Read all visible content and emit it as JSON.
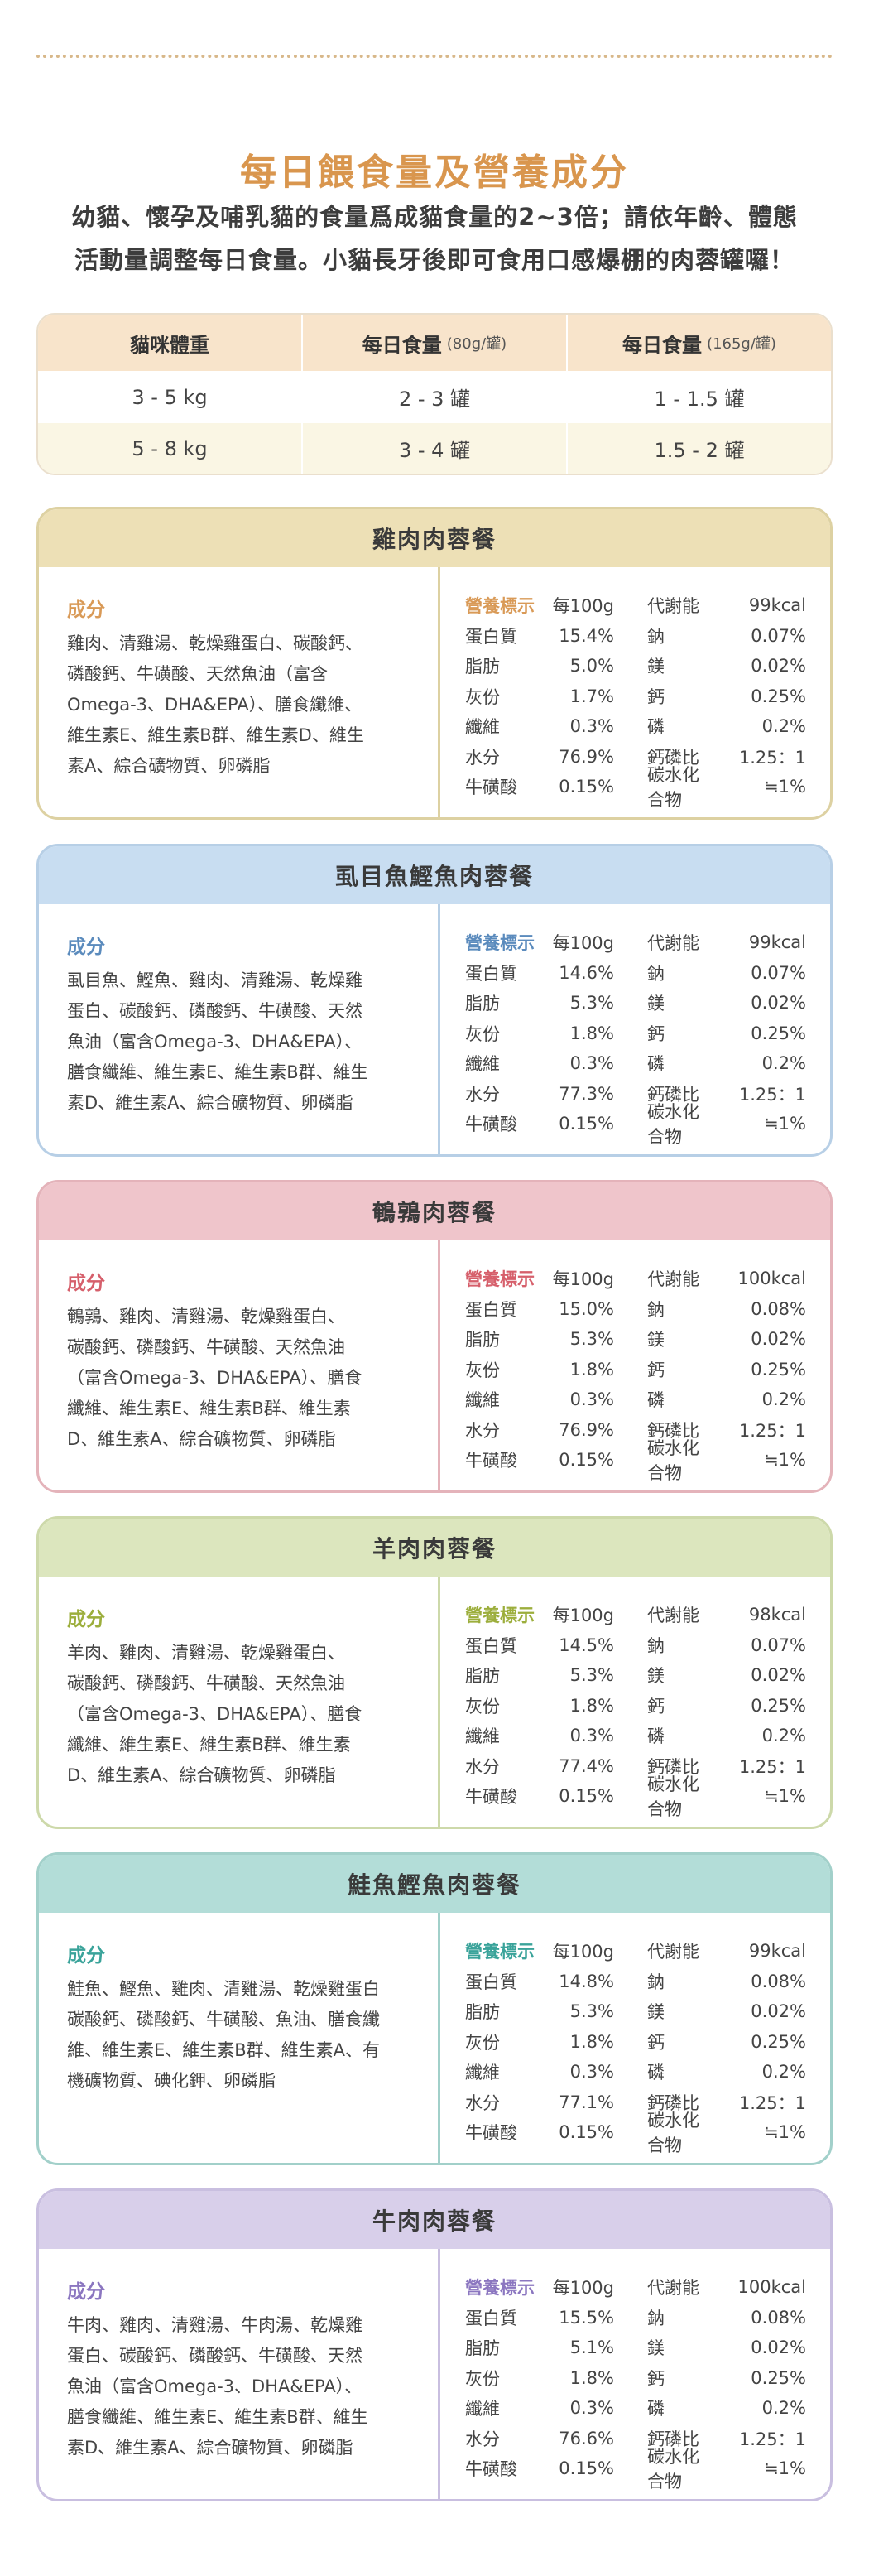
{
  "title": "每日餵食量及營養成分",
  "intro_lines": [
    "幼貓、懷孕及哺乳貓的食量爲成貓食量的2~3倍；請依年齡、體態",
    "活動量調整每日食量。小貓長牙後即可食用口感爆棚的肉蓉罐囉！"
  ],
  "feeding_table": {
    "headers": [
      {
        "main": "貓咪體重",
        "sub": ""
      },
      {
        "main": "每日食量",
        "sub": "(80g/罐)"
      },
      {
        "main": "每日食量",
        "sub": "(165g/罐)"
      }
    ],
    "rows": [
      [
        "3 - 5 kg",
        "2 - 3 罐",
        "1 - 1.5 罐"
      ],
      [
        "5 - 8 kg",
        "3 - 4 罐",
        "1.5 - 2 罐"
      ]
    ]
  },
  "ingredients_label": "成分",
  "nutrition_header_label": "營養標示",
  "per_100g": "每100g",
  "products": [
    {
      "name": "雞肉肉蓉餐",
      "colors": {
        "head": "#ede0b6",
        "border": "#ddd1a2",
        "accent": "#d99a57"
      },
      "ingredients": [
        "雞肉、清雞湯、乾燥雞蛋白、碳酸鈣、",
        "磷酸鈣、牛磺酸、天然魚油（富含",
        "Omega-3、DHA&EPA）、膳食纖維、",
        "維生素E、維生素B群、維生素D、維生",
        "素A、綜合礦物質、卵磷脂"
      ],
      "nutrition": [
        [
          "蛋白質",
          "15.4%",
          "鈉",
          "0.07%"
        ],
        [
          "脂肪",
          "5.0%",
          "鎂",
          "0.02%"
        ],
        [
          "灰份",
          "1.7%",
          "鈣",
          "0.25%"
        ],
        [
          "纖維",
          "0.3%",
          "磷",
          "0.2%"
        ],
        [
          "水分",
          "76.9%",
          "鈣磷比",
          "1.25：1"
        ],
        [
          "牛磺酸",
          "0.15%",
          "碳水化合物",
          "≒1%"
        ]
      ],
      "metabolic_label": "代謝能",
      "kcal": "99kcal"
    },
    {
      "name": "虱目魚鰹魚肉蓉餐",
      "colors": {
        "head": "#c8ddf1",
        "border": "#b7cfe6",
        "accent": "#5b8bbd"
      },
      "ingredients": [
        "虱目魚、鰹魚、雞肉、清雞湯、乾燥雞",
        "蛋白、碳酸鈣、磷酸鈣、牛磺酸、天然",
        "魚油（富含Omega-3、DHA&EPA）、",
        "膳食纖維、維生素E、維生素B群、維生",
        "素D、維生素A、綜合礦物質、卵磷脂"
      ],
      "nutrition": [
        [
          "蛋白質",
          "14.6%",
          "鈉",
          "0.07%"
        ],
        [
          "脂肪",
          "5.3%",
          "鎂",
          "0.02%"
        ],
        [
          "灰份",
          "1.8%",
          "鈣",
          "0.25%"
        ],
        [
          "纖維",
          "0.3%",
          "磷",
          "0.2%"
        ],
        [
          "水分",
          "77.3%",
          "鈣磷比",
          "1.25：1"
        ],
        [
          "牛磺酸",
          "0.15%",
          "碳水化合物",
          "≒1%"
        ]
      ],
      "metabolic_label": "代謝能",
      "kcal": "99kcal"
    },
    {
      "name": "鵪鶉肉蓉餐",
      "colors": {
        "head": "#efc5cb",
        "border": "#e4b3ba",
        "accent": "#d65f6b"
      },
      "ingredients": [
        "鵪鶉、雞肉、清雞湯、乾燥雞蛋白、",
        "碳酸鈣、磷酸鈣、牛磺酸、天然魚油",
        "（富含Omega-3、DHA&EPA）、膳食",
        "纖維、維生素E、維生素B群、維生素",
        "D、維生素A、綜合礦物質、卵磷脂"
      ],
      "nutrition": [
        [
          "蛋白質",
          "15.0%",
          "鈉",
          "0.08%"
        ],
        [
          "脂肪",
          "5.3%",
          "鎂",
          "0.02%"
        ],
        [
          "灰份",
          "1.8%",
          "鈣",
          "0.25%"
        ],
        [
          "纖維",
          "0.3%",
          "磷",
          "0.2%"
        ],
        [
          "水分",
          "76.9%",
          "鈣磷比",
          "1.25：1"
        ],
        [
          "牛磺酸",
          "0.15%",
          "碳水化合物",
          "≒1%"
        ]
      ],
      "metabolic_label": "代謝能",
      "kcal": "100kcal"
    },
    {
      "name": "羊肉肉蓉餐",
      "colors": {
        "head": "#dce6be",
        "border": "#cdd9aa",
        "accent": "#9cae3c"
      },
      "ingredients": [
        "羊肉、雞肉、清雞湯、乾燥雞蛋白、",
        "碳酸鈣、磷酸鈣、牛磺酸、天然魚油",
        "（富含Omega-3、DHA&EPA）、膳食",
        "纖維、維生素E、維生素B群、維生素",
        "D、維生素A、綜合礦物質、卵磷脂"
      ],
      "nutrition": [
        [
          "蛋白質",
          "14.5%",
          "鈉",
          "0.07%"
        ],
        [
          "脂肪",
          "5.3%",
          "鎂",
          "0.02%"
        ],
        [
          "灰份",
          "1.8%",
          "鈣",
          "0.25%"
        ],
        [
          "纖維",
          "0.3%",
          "磷",
          "0.2%"
        ],
        [
          "水分",
          "77.4%",
          "鈣磷比",
          "1.25：1"
        ],
        [
          "牛磺酸",
          "0.15%",
          "碳水化合物",
          "≒1%"
        ]
      ],
      "metabolic_label": "代謝能",
      "kcal": "98kcal"
    },
    {
      "name": "鮭魚鰹魚肉蓉餐",
      "colors": {
        "head": "#b3ddd8",
        "border": "#a2d0ca",
        "accent": "#3aa39a"
      },
      "ingredients": [
        "鮭魚、鰹魚、雞肉、清雞湯、乾燥雞蛋白",
        "碳酸鈣、磷酸鈣、牛磺酸、魚油、膳食纖",
        "維、維生素E、維生素B群、維生素A、有",
        "機礦物質、碘化鉀、卵磷脂"
      ],
      "nutrition": [
        [
          "蛋白質",
          "14.8%",
          "鈉",
          "0.08%"
        ],
        [
          "脂肪",
          "5.3%",
          "鎂",
          "0.02%"
        ],
        [
          "灰份",
          "1.8%",
          "鈣",
          "0.25%"
        ],
        [
          "纖維",
          "0.3%",
          "磷",
          "0.2%"
        ],
        [
          "水分",
          "77.1%",
          "鈣磷比",
          "1.25：1"
        ],
        [
          "牛磺酸",
          "0.15%",
          "碳水化合物",
          "≒1%"
        ]
      ],
      "metabolic_label": "代謝能",
      "kcal": "99kcal"
    },
    {
      "name": "牛肉肉蓉餐",
      "colors": {
        "head": "#d8cfea",
        "border": "#c9bfe0",
        "accent": "#8b76c0"
      },
      "ingredients": [
        "牛肉、雞肉、清雞湯、牛肉湯、乾燥雞",
        "蛋白、碳酸鈣、磷酸鈣、牛磺酸、天然",
        "魚油（富含Omega-3、DHA&EPA）、",
        "膳食纖維、維生素E、維生素B群、維生",
        "素D、維生素A、綜合礦物質、卵磷脂"
      ],
      "nutrition": [
        [
          "蛋白質",
          "15.5%",
          "鈉",
          "0.08%"
        ],
        [
          "脂肪",
          "5.1%",
          "鎂",
          "0.02%"
        ],
        [
          "灰份",
          "1.8%",
          "鈣",
          "0.25%"
        ],
        [
          "纖維",
          "0.3%",
          "磷",
          "0.2%"
        ],
        [
          "水分",
          "76.6%",
          "鈣磷比",
          "1.25：1"
        ],
        [
          "牛磺酸",
          "0.15%",
          "碳水化合物",
          "≒1%"
        ]
      ],
      "metabolic_label": "代謝能",
      "kcal": "100kcal"
    }
  ]
}
